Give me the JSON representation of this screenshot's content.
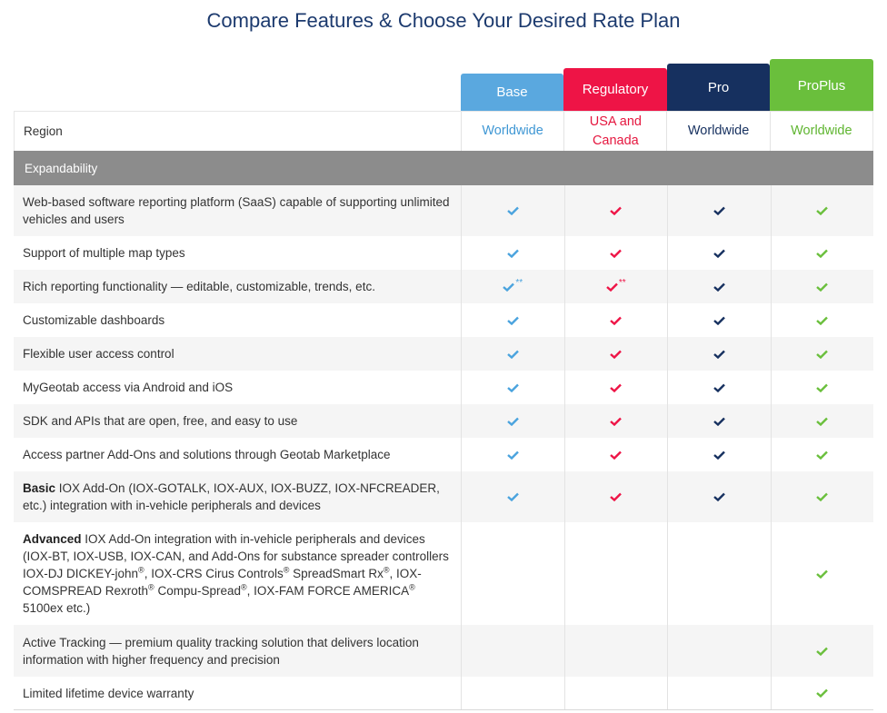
{
  "page": {
    "title": "Compare Features & Choose Your Desired Rate Plan"
  },
  "colors": {
    "base": "#5aa8df",
    "regulatory": "#ee1446",
    "pro": "#16305f",
    "proplus": "#6abf3c",
    "section_bg": "#8c8c8c"
  },
  "plans": [
    {
      "name": "Base",
      "region": "Worldwide",
      "color": "#5aa8df"
    },
    {
      "name": "Regulatory",
      "region": "USA and Canada",
      "color": "#ee1446"
    },
    {
      "name": "Pro",
      "region": "Worldwide",
      "color": "#16305f"
    },
    {
      "name": "ProPlus",
      "region": "Worldwide",
      "color": "#6abf3c"
    }
  ],
  "region_label": "Region",
  "section": {
    "label": "Expandability"
  },
  "features": [
    {
      "text": "Web-based software reporting platform (SaaS) capable of supporting unlimited vehicles and users",
      "checks": [
        true,
        true,
        true,
        true
      ],
      "icon": "check-icon"
    },
    {
      "text": "Support of multiple map types",
      "checks": [
        true,
        true,
        true,
        true
      ]
    },
    {
      "text": "Rich reporting functionality — editable, customizable, trends, etc.",
      "checks": [
        true,
        true,
        true,
        true
      ],
      "footnote": "**",
      "footnote_plans": [
        0,
        1
      ]
    },
    {
      "text": "Customizable dashboards",
      "checks": [
        true,
        true,
        true,
        true
      ]
    },
    {
      "text": "Flexible user access control",
      "checks": [
        true,
        true,
        true,
        true
      ]
    },
    {
      "text": "MyGeotab access via Android and iOS",
      "checks": [
        true,
        true,
        true,
        true
      ]
    },
    {
      "text": "SDK and APIs that are open, free, and easy to use",
      "checks": [
        true,
        true,
        true,
        true
      ]
    },
    {
      "text": "Access partner Add-Ons and solutions through Geotab Marketplace",
      "checks": [
        true,
        true,
        true,
        true
      ]
    },
    {
      "bold": "Basic",
      "text": " IOX Add-On (IOX-GOTALK, IOX-AUX, IOX-BUZZ, IOX-NFCREADER, etc.) integration with in-vehicle peripherals and devices",
      "checks": [
        true,
        true,
        true,
        true
      ]
    },
    {
      "bold": "Advanced",
      "text_parts": [
        " IOX Add-On integration with in-vehicle peripherals and devices (IOX-BT, IOX-USB, IOX-CAN, and Add-Ons for substance spreader controllers IOX-DJ DICKEY-john",
        "®",
        ", IOX-CRS Cirus Controls",
        "®",
        " SpreadSmart Rx",
        "®",
        ", IOX-COMSPREAD Rexroth",
        "®",
        " Compu-Spread",
        "®",
        ", IOX-FAM FORCE AMERICA",
        "®",
        " 5100ex etc.)"
      ],
      "checks": [
        false,
        false,
        false,
        true
      ]
    },
    {
      "text": "Active Tracking — premium quality tracking solution that delivers location information with higher frequency and precision",
      "checks": [
        false,
        false,
        false,
        true
      ]
    },
    {
      "text": "Limited lifetime device warranty",
      "checks": [
        false,
        false,
        false,
        true
      ]
    }
  ]
}
